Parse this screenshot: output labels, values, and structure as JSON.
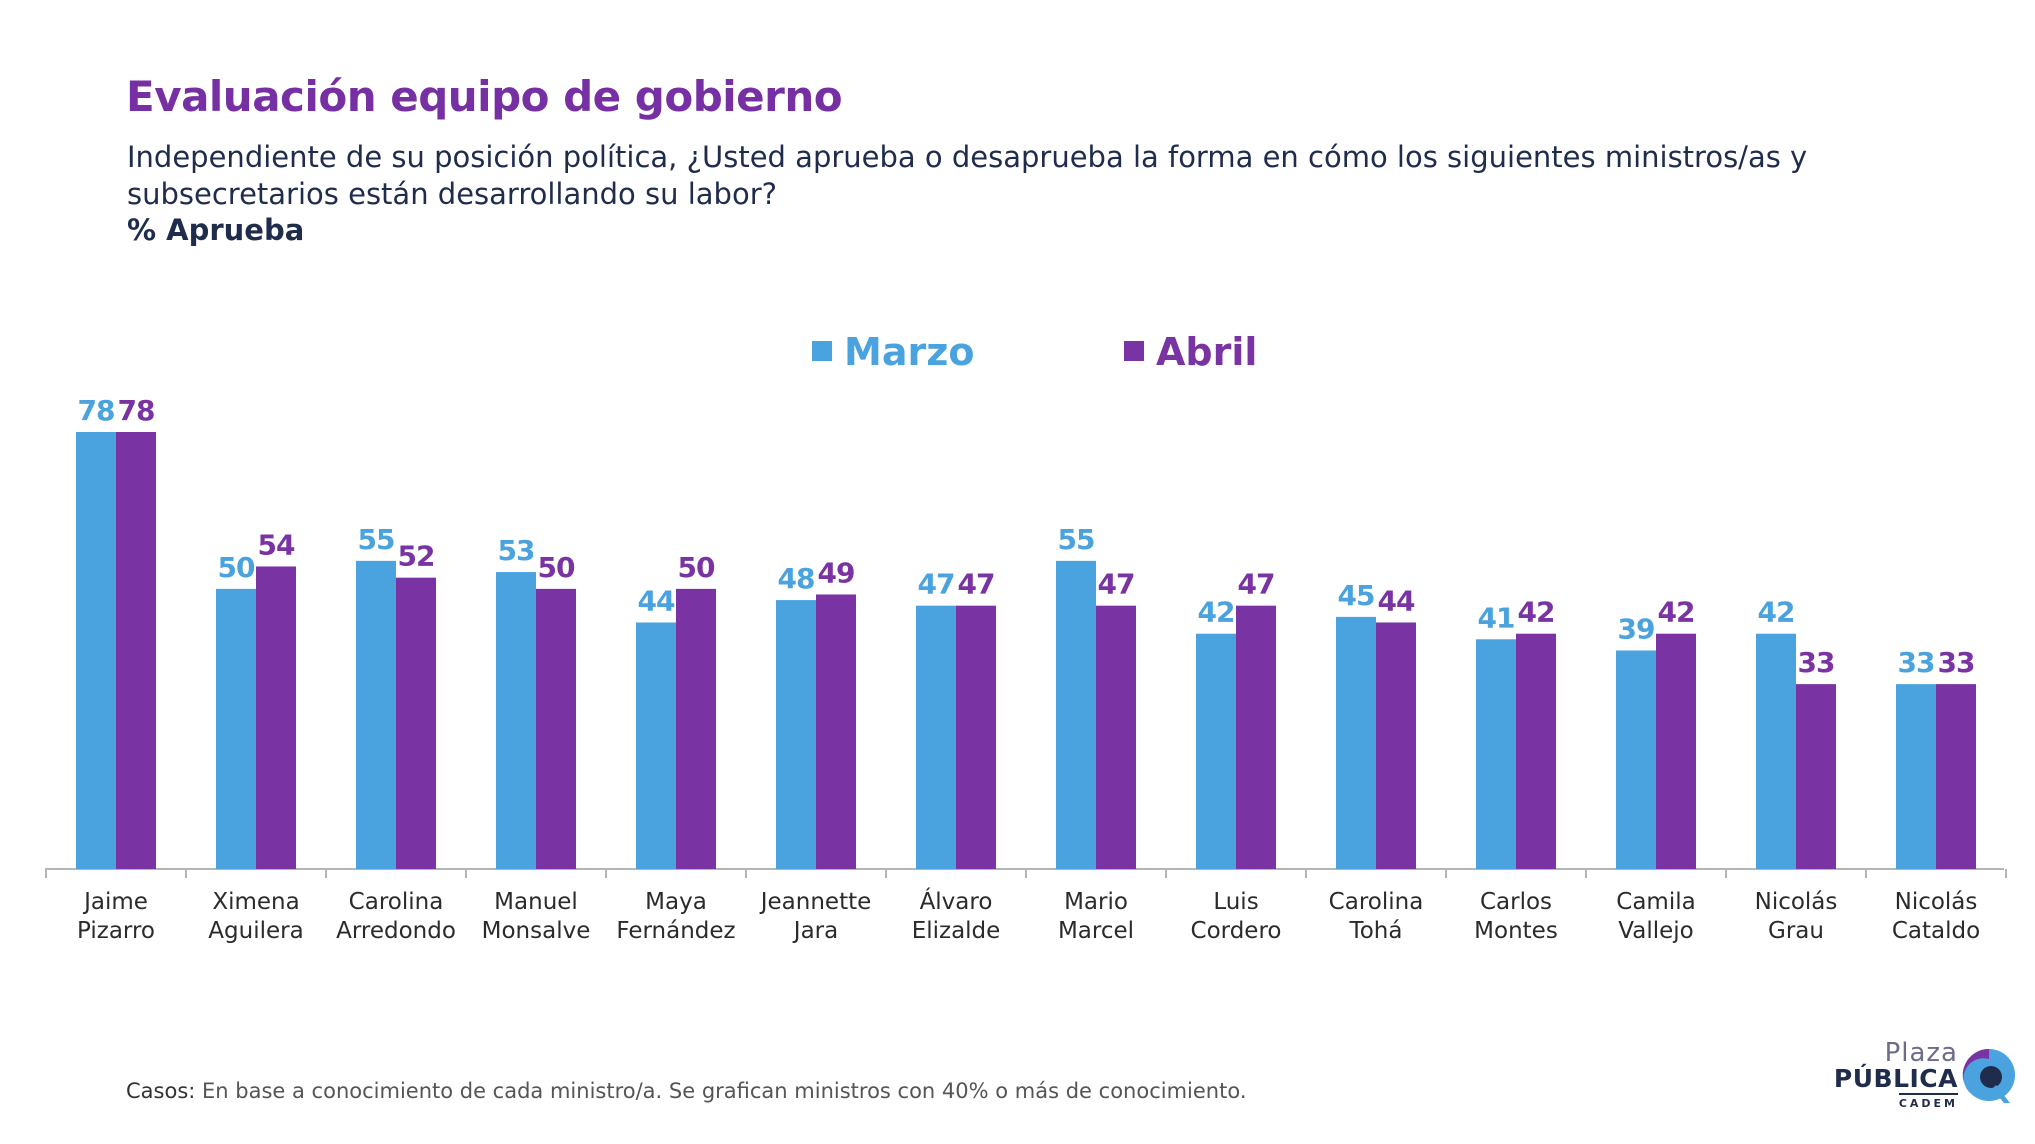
{
  "header": {
    "title": "Evaluación equipo de gobierno",
    "question": "Independiente de su posición política, ¿Usted aprueba o desaprueba la forma en cómo los siguientes ministros/as y subsecretarios están desarrollando su labor?",
    "metric": "% Aprueba"
  },
  "chart_data": {
    "type": "bar",
    "title": "",
    "xlabel": "",
    "ylabel": "",
    "ylim": [
      0,
      78
    ],
    "grid": false,
    "legend_position": "top-center",
    "categories": [
      [
        "Jaime",
        "Pizarro"
      ],
      [
        "Ximena",
        "Aguilera"
      ],
      [
        "Carolina",
        "Arredondo"
      ],
      [
        "Manuel",
        "Monsalve"
      ],
      [
        "Maya",
        "Fernández"
      ],
      [
        "Jeannette",
        "Jara"
      ],
      [
        "Álvaro",
        "Elizalde"
      ],
      [
        "Mario",
        "Marcel"
      ],
      [
        "Luis",
        "Cordero"
      ],
      [
        "Carolina",
        "Tohá"
      ],
      [
        "Carlos",
        "Montes"
      ],
      [
        "Camila",
        "Vallejo"
      ],
      [
        "Nicolás",
        "Grau"
      ],
      [
        "Nicolás",
        "Cataldo"
      ]
    ],
    "series": [
      {
        "name": "Marzo",
        "color": "#4aa3df",
        "values": [
          78,
          50,
          55,
          53,
          44,
          48,
          47,
          55,
          42,
          45,
          41,
          39,
          42,
          33
        ]
      },
      {
        "name": "Abril",
        "color": "#7a33a3",
        "values": [
          78,
          54,
          52,
          50,
          50,
          49,
          47,
          47,
          47,
          44,
          42,
          42,
          33,
          33
        ]
      }
    ]
  },
  "footnote": {
    "lead": "Casos:",
    "text": " En base a conocimiento de cada ministro/a. Se grafican ministros con 40% o más de conocimiento."
  },
  "logo": {
    "line1": "Plaza",
    "line2": "PÚBLICA",
    "line3": "CADEM",
    "colors": {
      "blue": "#4aa3df",
      "purple": "#7a33a3",
      "navy": "#1f2c4c"
    }
  }
}
